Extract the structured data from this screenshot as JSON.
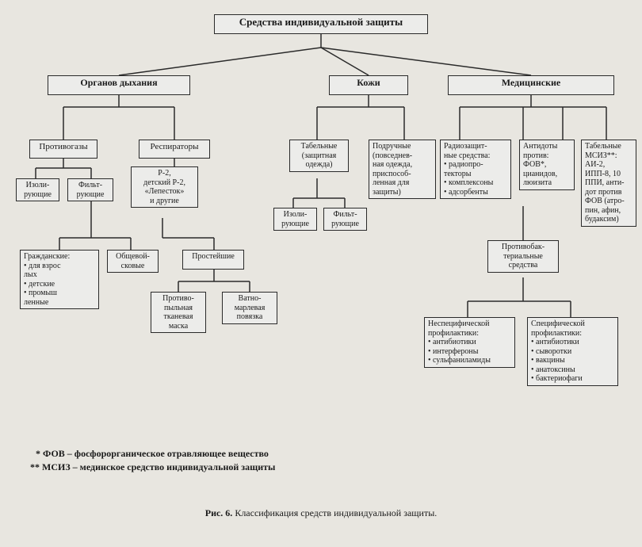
{
  "type": "tree",
  "background_color": "#e8e6e0",
  "box_border_color": "#2a2a2a",
  "line_color": "#2a2a2a",
  "line_width": 1.5,
  "font_family": "Times New Roman",
  "nodes": {
    "root": {
      "label": "Средства индивидуальной защиты"
    },
    "respOrgans": {
      "label": "Органов дыхания"
    },
    "skin": {
      "label": "Кожи"
    },
    "medical": {
      "label": "Медицинские"
    },
    "gasmasks": {
      "label": "Противогазы"
    },
    "respirators": {
      "label": "Респираторы"
    },
    "isolating1": {
      "label": "Изоли-\nрующие"
    },
    "filtering1": {
      "label": "Фильт-\nрующие"
    },
    "r2": {
      "label": "Р-2,\nдетский Р-2,\n«Лепесток»\nи другие"
    },
    "simplest": {
      "label": "Простейшие"
    },
    "civil": {
      "label": "Гражданские:\n• для взрос\nлых\n• детские\n• промыш\nленные"
    },
    "combined": {
      "label": "Общевой-\nсковые"
    },
    "dustmask": {
      "label": "Противо-\nпыльная\nтканевая\nмаска"
    },
    "gauze": {
      "label": "Ватно-\nмарлевая\nповязка"
    },
    "tabSkin": {
      "label": "Табельные\n(защитная\nодежда)"
    },
    "improvSkin": {
      "label": "Подручные\n(повседнев-\nная одежда,\nприспособ-\nленная для\nзащиты)"
    },
    "isolating2": {
      "label": "Изоли-\nрующие"
    },
    "filtering2": {
      "label": "Фильт-\nрующие"
    },
    "radio": {
      "label": "Радиозащит-\nные средства:\n• радиопро-\nтекторы\n• комплексоны\n• адсорбенты"
    },
    "antidotes": {
      "label": "Антидоты\nпротив:\nФОВ*,\nцианидов,\nлюизита"
    },
    "tabMSIZ": {
      "label": "Табельные\nМСИЗ**:\nАИ-2,\nИПП-8, 10\nППИ, анти-\nдот против\nФОВ (атро-\nпин, афин,\nбудаксим)"
    },
    "antibact": {
      "label": "Противобак-\nтериальные\nсредства"
    },
    "nonspec": {
      "label": "Неспецифической\nпрофилактики:\n• антибиотики\n• интерфероны\n• сульфаниламиды"
    },
    "spec": {
      "label": "Специфической\nпрофилактики:\n• антибиотики\n• сыворотки\n• вакцины\n• анатоксины\n• бактериофаги"
    }
  },
  "footnote1": "* ФОВ – фосфорорганическое отравляющее вещество",
  "footnote2": "** МСИЗ – мединское средство индивидуальной защиты",
  "caption_prefix": "Рис. 6. ",
  "caption_text": "Классификация средств индивидуальной защиты."
}
